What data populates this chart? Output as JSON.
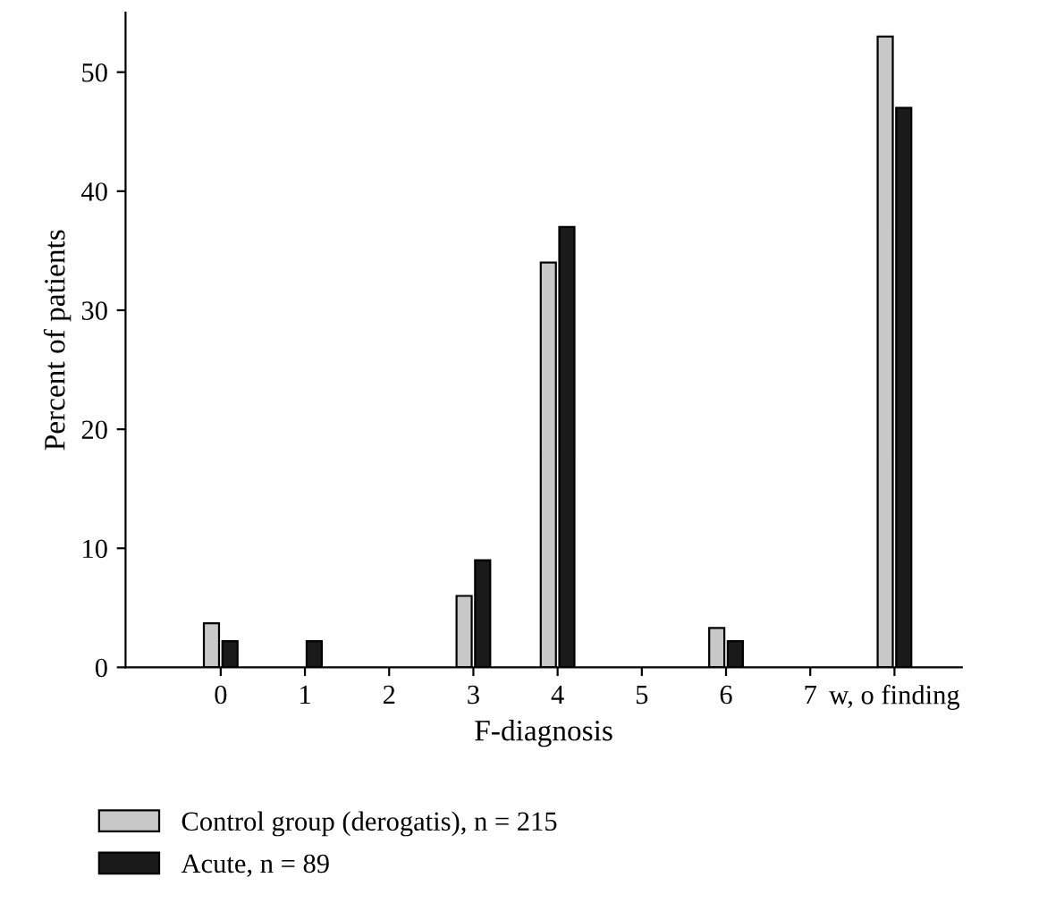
{
  "chart_data": {
    "type": "bar",
    "xlabel": "F-diagnosis",
    "ylabel": "Percent of patients",
    "categories": [
      "0",
      "1",
      "2",
      "3",
      "4",
      "5",
      "6",
      "7",
      "w, o finding"
    ],
    "series": [
      {
        "name": "Control group (derogatis), n = 215",
        "color": "#c8c8c8",
        "values": [
          3.7,
          0,
          0,
          6,
          34,
          0,
          3.3,
          0,
          53
        ]
      },
      {
        "name": "Acute, n = 89",
        "color": "#1a1a1a",
        "values": [
          2.2,
          2.2,
          0,
          9,
          37,
          0,
          2.2,
          0,
          47
        ]
      }
    ],
    "ylim": [
      0,
      55
    ],
    "yticks": [
      0,
      10,
      20,
      30,
      40,
      50
    ],
    "grid": false,
    "legend": "bottom"
  }
}
